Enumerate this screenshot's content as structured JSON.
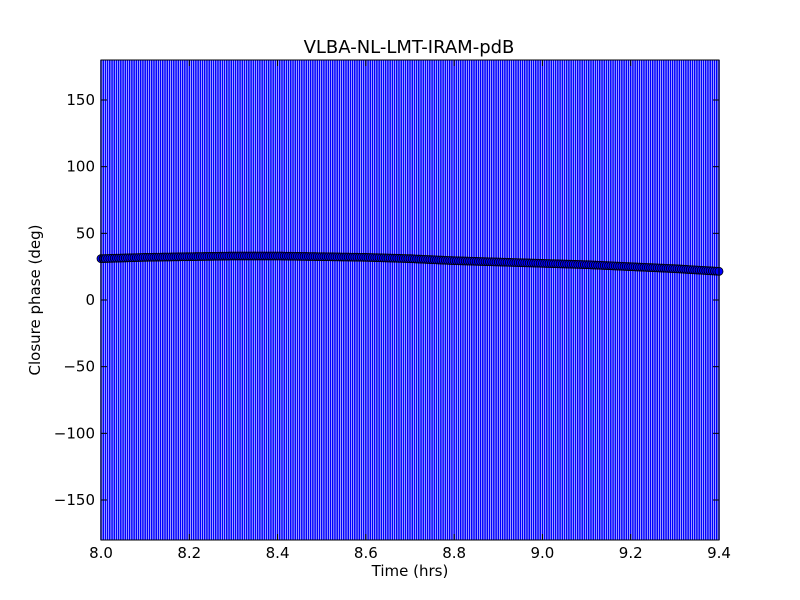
{
  "chart_data": {
    "type": "scatter",
    "title": "VLBA-NL-LMT-IRAM-pdB",
    "xlabel": "Time (hrs)",
    "ylabel": "Closure phase (deg)",
    "xlim": [
      8.0,
      9.4
    ],
    "ylim": [
      -180,
      180
    ],
    "xticks": [
      {
        "value": 8.0,
        "label": "8.0"
      },
      {
        "value": 8.2,
        "label": "8.2"
      },
      {
        "value": 8.4,
        "label": "8.4"
      },
      {
        "value": 8.6,
        "label": "8.6"
      },
      {
        "value": 8.8,
        "label": "8.8"
      },
      {
        "value": 9.0,
        "label": "9.0"
      },
      {
        "value": 9.2,
        "label": "9.2"
      },
      {
        "value": 9.4,
        "label": "9.4"
      }
    ],
    "yticks": [
      {
        "value": 150,
        "label": "150"
      },
      {
        "value": 100,
        "label": "100"
      },
      {
        "value": 50,
        "label": "50"
      },
      {
        "value": 0,
        "label": "0"
      },
      {
        "value": -50,
        "label": "−50"
      },
      {
        "value": -100,
        "label": "−100"
      },
      {
        "value": -150,
        "label": "−150"
      }
    ],
    "grid": false,
    "legend": false,
    "series": [
      {
        "marker": "circle",
        "marker_color": "#0000ff",
        "error_bars": "vertical",
        "error_bar_color": "#0000ff",
        "error_low": -180,
        "error_high": 180,
        "x_start": 8.0,
        "x_end": 9.4,
        "x_step": 0.005,
        "trend": [
          {
            "x": 8.0,
            "y": 31
          },
          {
            "x": 8.1,
            "y": 32
          },
          {
            "x": 8.2,
            "y": 32.5
          },
          {
            "x": 8.3,
            "y": 33
          },
          {
            "x": 8.4,
            "y": 33
          },
          {
            "x": 8.5,
            "y": 32.5
          },
          {
            "x": 8.6,
            "y": 32
          },
          {
            "x": 8.7,
            "y": 31
          },
          {
            "x": 8.8,
            "y": 29.5
          },
          {
            "x": 8.9,
            "y": 28.5
          },
          {
            "x": 9.0,
            "y": 27.5
          },
          {
            "x": 9.1,
            "y": 26.5
          },
          {
            "x": 9.2,
            "y": 25
          },
          {
            "x": 9.3,
            "y": 23.5
          },
          {
            "x": 9.4,
            "y": 21.5
          }
        ]
      }
    ]
  }
}
